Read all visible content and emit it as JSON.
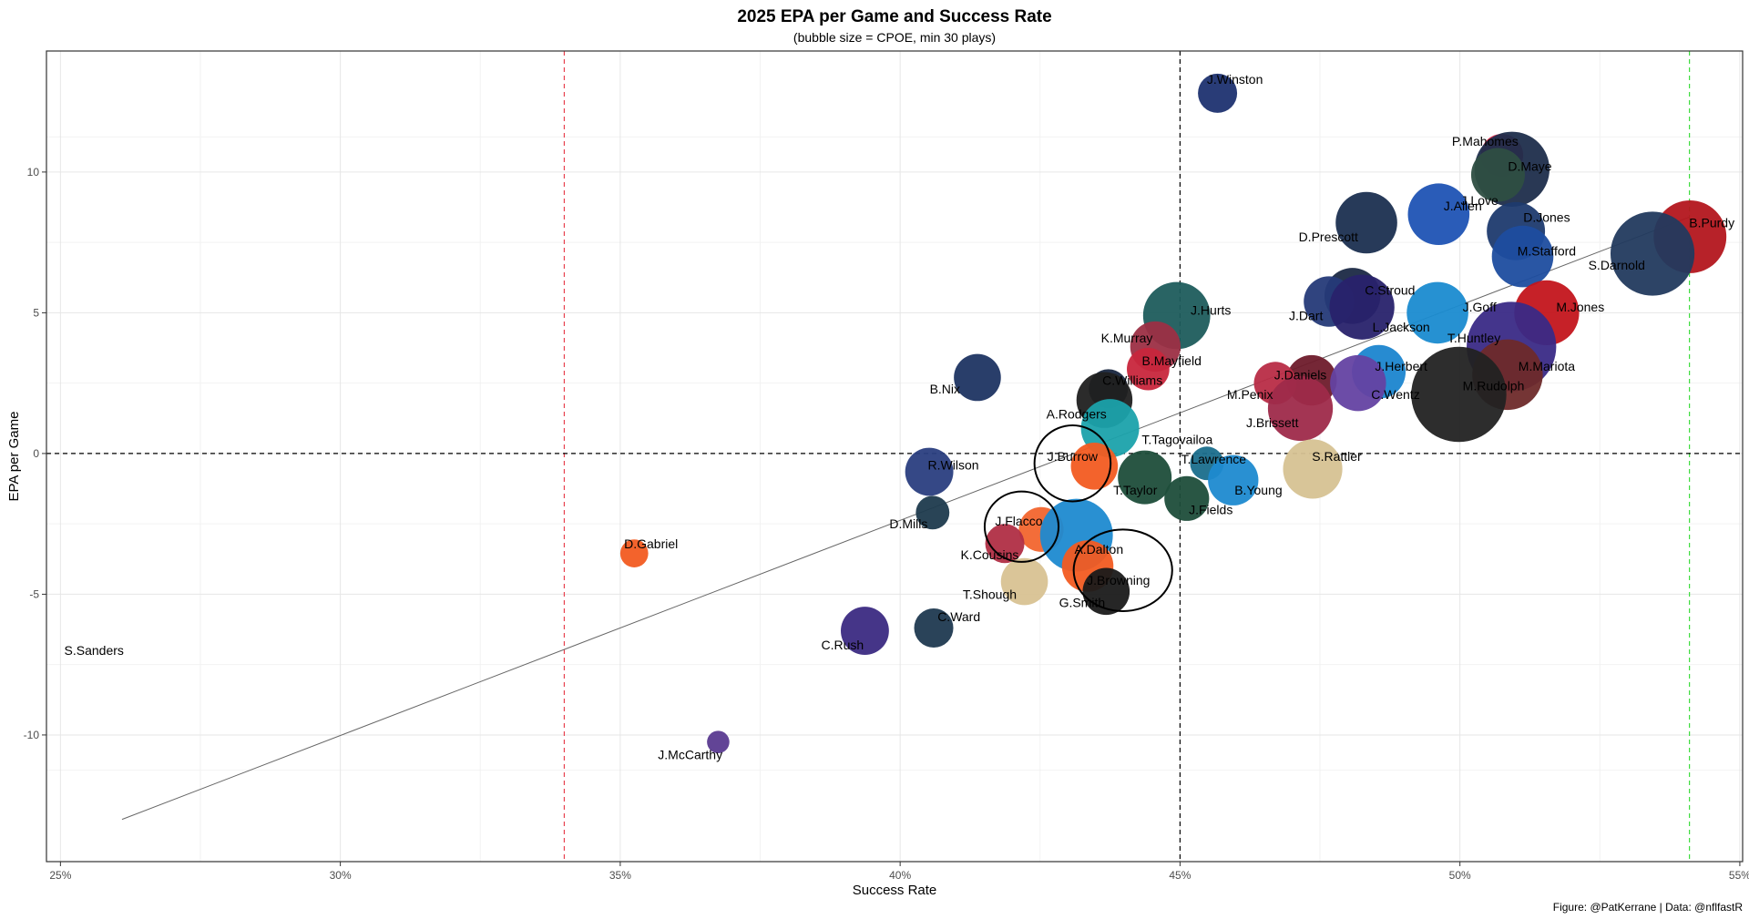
{
  "chart_data": {
    "type": "scatter",
    "title": "2025 EPA per Game and Success Rate",
    "subtitle": "(bubble size = CPOE, min 30 plays)",
    "xlabel": "Success Rate",
    "ylabel": "EPA per Game",
    "caption": "Figure: @PatKerrane | Data: @nflfastR",
    "xlim": [
      0.2475,
      0.5505
    ],
    "ylim": [
      -14.5,
      14.3
    ],
    "xticks": [
      0.25,
      0.3,
      0.35,
      0.4,
      0.45,
      0.5,
      0.55
    ],
    "xtick_labels": [
      "25%",
      "30%",
      "35%",
      "40%",
      "45%",
      "50%",
      "55%"
    ],
    "yticks": [
      -10,
      -5,
      0,
      5,
      10
    ],
    "ytick_labels": [
      "-10",
      "-5",
      "0",
      "5",
      "10"
    ],
    "reference_lines": [
      {
        "axis": "x",
        "value": 0.34,
        "color": "#e8414e",
        "style": "dashed"
      },
      {
        "axis": "x",
        "value": 0.45,
        "color": "#000000",
        "style": "dashed"
      },
      {
        "axis": "x",
        "value": 0.541,
        "color": "#3ddc3d",
        "style": "dashed"
      },
      {
        "axis": "y",
        "value": 0,
        "color": "#000000",
        "style": "dashed"
      }
    ],
    "trend_line": {
      "x1": 0.261,
      "y1": -13.0,
      "x2": 0.541,
      "y2": 8.4,
      "color": "#666666"
    },
    "highlights": [
      {
        "label": "J.Burrow",
        "x": 0.4308,
        "y": -0.35,
        "rx": 0.0068,
        "ry": 1.35
      },
      {
        "label": "J.Flacco",
        "x": 0.4217,
        "y": -2.6,
        "rx": 0.0066,
        "ry": 1.25
      },
      {
        "label": "J.Browning",
        "x": 0.4398,
        "y": -4.15,
        "rx": 0.0088,
        "ry": 1.45
      }
    ],
    "points": [
      {
        "name": "J.Winston",
        "x": 0.4567,
        "y": 12.8,
        "size": 0.0035,
        "color": "#1e3270",
        "lx": 0.4598,
        "ly": 13.3
      },
      {
        "name": "P.Mahomes",
        "x": 0.5075,
        "y": 10.6,
        "size": 0.0038,
        "color": "#d8284a",
        "lx": 0.5045,
        "ly": 11.1
      },
      {
        "name": "D.Maye",
        "x": 0.5093,
        "y": 10.1,
        "size": 0.0067,
        "color": "#1d2d4b",
        "lx": 0.5125,
        "ly": 10.2
      },
      {
        "name": "J.Love",
        "x": 0.5068,
        "y": 9.9,
        "size": 0.0048,
        "color": "#2e4e42",
        "lx": 0.5035,
        "ly": 9.0
      },
      {
        "name": "J.Allen",
        "x": 0.4962,
        "y": 8.5,
        "size": 0.0055,
        "color": "#1f53b4",
        "lx": 0.5005,
        "ly": 8.8
      },
      {
        "name": "D.Prescott",
        "x": 0.4833,
        "y": 8.2,
        "size": 0.0055,
        "color": "#1b2f50",
        "lx": 0.4765,
        "ly": 7.7
      },
      {
        "name": "D.Jones",
        "x": 0.51,
        "y": 7.9,
        "size": 0.0052,
        "color": "#1e3a6e",
        "lx": 0.5155,
        "ly": 8.4
      },
      {
        "name": "B.Purdy",
        "x": 0.5411,
        "y": 7.7,
        "size": 0.0065,
        "color": "#b3161e",
        "lx": 0.545,
        "ly": 8.2
      },
      {
        "name": "S.Darnold",
        "x": 0.5344,
        "y": 7.1,
        "size": 0.0075,
        "color": "#223a5e",
        "lx": 0.528,
        "ly": 6.7
      },
      {
        "name": "M.Stafford",
        "x": 0.5112,
        "y": 7.0,
        "size": 0.0055,
        "color": "#1e4d9f",
        "lx": 0.5155,
        "ly": 7.2
      },
      {
        "name": "C.Stroud",
        "x": 0.4808,
        "y": 5.6,
        "size": 0.005,
        "color": "#1b2945",
        "lx": 0.4875,
        "ly": 5.8
      },
      {
        "name": "J.Dart",
        "x": 0.4766,
        "y": 5.4,
        "size": 0.0045,
        "color": "#253a78",
        "lx": 0.4725,
        "ly": 4.9
      },
      {
        "name": "L.Jackson",
        "x": 0.4825,
        "y": 5.2,
        "size": 0.0058,
        "color": "#28226b",
        "lx": 0.4895,
        "ly": 4.5
      },
      {
        "name": "J.Goff",
        "x": 0.496,
        "y": 5.0,
        "size": 0.0055,
        "color": "#1a8bd0",
        "lx": 0.5035,
        "ly": 5.2
      },
      {
        "name": "M.Jones",
        "x": 0.5155,
        "y": 5.0,
        "size": 0.0058,
        "color": "#c3151c",
        "lx": 0.5215,
        "ly": 5.2
      },
      {
        "name": "J.Hurts",
        "x": 0.4494,
        "y": 4.9,
        "size": 0.006,
        "color": "#1d5c5c",
        "lx": 0.4555,
        "ly": 5.1
      },
      {
        "name": "K.Murray",
        "x": 0.4456,
        "y": 3.8,
        "size": 0.0045,
        "color": "#9c2f45",
        "lx": 0.4405,
        "ly": 4.1
      },
      {
        "name": "T.Huntley",
        "x": 0.5092,
        "y": 3.8,
        "size": 0.008,
        "color": "#3a2a86",
        "lx": 0.5025,
        "ly": 4.1
      },
      {
        "name": "B.Mayfield",
        "x": 0.4443,
        "y": 3.0,
        "size": 0.0038,
        "color": "#c8263c",
        "lx": 0.4485,
        "ly": 3.3
      },
      {
        "name": "J.Herbert",
        "x": 0.4855,
        "y": 2.9,
        "size": 0.0048,
        "color": "#1b85cf",
        "lx": 0.4895,
        "ly": 3.1
      },
      {
        "name": "M.Mariota",
        "x": 0.5085,
        "y": 2.8,
        "size": 0.0063,
        "color": "#6e2a2a",
        "lx": 0.5155,
        "ly": 3.1
      },
      {
        "name": "B.Nix",
        "x": 0.4138,
        "y": 2.7,
        "size": 0.0042,
        "color": "#1e3462",
        "lx": 0.408,
        "ly": 2.3
      },
      {
        "name": "J.Daniels",
        "x": 0.4735,
        "y": 2.6,
        "size": 0.0045,
        "color": "#6e1b2b",
        "lx": 0.4715,
        "ly": 2.8
      },
      {
        "name": "M.Penix",
        "x": 0.467,
        "y": 2.5,
        "size": 0.0038,
        "color": "#b82c46",
        "lx": 0.4625,
        "ly": 2.1
      },
      {
        "name": "C.Williams",
        "x": 0.4372,
        "y": 2.3,
        "size": 0.0035,
        "color": "#18263f",
        "lx": 0.4415,
        "ly": 2.6
      },
      {
        "name": "C.Wentz",
        "x": 0.4818,
        "y": 2.5,
        "size": 0.005,
        "color": "#6442a2",
        "lx": 0.4885,
        "ly": 2.1
      },
      {
        "name": "M.Rudolph",
        "x": 0.4998,
        "y": 2.1,
        "size": 0.0085,
        "color": "#222222",
        "lx": 0.506,
        "ly": 2.4
      },
      {
        "name": "A.Rodgers",
        "x": 0.4365,
        "y": 1.9,
        "size": 0.005,
        "color": "#202020",
        "lx": 0.4315,
        "ly": 1.4
      },
      {
        "name": "J.Brissett",
        "x": 0.4715,
        "y": 1.6,
        "size": 0.0058,
        "color": "#9e2a4a",
        "lx": 0.4665,
        "ly": 1.1
      },
      {
        "name": "T.Tagovailoa",
        "x": 0.4375,
        "y": 0.9,
        "size": 0.0052,
        "color": "#1ba2ab",
        "lx": 0.4495,
        "ly": 0.5
      },
      {
        "name": "J.Burrow",
        "x": 0.4347,
        "y": -0.45,
        "size": 0.0042,
        "color": "#f25b21",
        "lx": 0.4308,
        "ly": -0.1
      },
      {
        "name": "T.Lawrence",
        "x": 0.4548,
        "y": -0.35,
        "size": 0.003,
        "color": "#1a6e8c",
        "lx": 0.456,
        "ly": -0.2
      },
      {
        "name": "S.Rattler",
        "x": 0.4737,
        "y": -0.55,
        "size": 0.0053,
        "color": "#d6c292",
        "lx": 0.478,
        "ly": -0.1
      },
      {
        "name": "R.Wilson",
        "x": 0.4052,
        "y": -0.65,
        "size": 0.0043,
        "color": "#2a3e80",
        "lx": 0.4095,
        "ly": -0.4
      },
      {
        "name": "T.Taylor",
        "x": 0.4437,
        "y": -0.85,
        "size": 0.0048,
        "color": "#1e4d3a",
        "lx": 0.442,
        "ly": -1.3
      },
      {
        "name": "B.Young",
        "x": 0.4595,
        "y": -0.95,
        "size": 0.0045,
        "color": "#1e8ad0",
        "lx": 0.464,
        "ly": -1.3
      },
      {
        "name": "J.Fields",
        "x": 0.4512,
        "y": -1.6,
        "size": 0.004,
        "color": "#1e4d3a",
        "lx": 0.4555,
        "ly": -2.0
      },
      {
        "name": "D.Mills",
        "x": 0.4058,
        "y": -2.1,
        "size": 0.003,
        "color": "#1e3a4d",
        "lx": 0.4015,
        "ly": -2.5
      },
      {
        "name": "J.Flacco",
        "x": 0.4252,
        "y": -2.7,
        "size": 0.004,
        "color": "#f2652e",
        "lx": 0.4212,
        "ly": -2.4
      },
      {
        "name": "K.Cousins",
        "x": 0.4187,
        "y": -3.2,
        "size": 0.0035,
        "color": "#b02e44",
        "lx": 0.416,
        "ly": -3.6
      },
      {
        "name": "A.Dalton",
        "x": 0.4315,
        "y": -2.9,
        "size": 0.0065,
        "color": "#1e8ad0",
        "lx": 0.4355,
        "ly": -3.4
      },
      {
        "name": "D.Gabriel",
        "x": 0.3525,
        "y": -3.55,
        "size": 0.0025,
        "color": "#f25b21",
        "lx": 0.3555,
        "ly": -3.2
      },
      {
        "name": "J.Browning",
        "x": 0.4335,
        "y": -4.0,
        "size": 0.0046,
        "color": "#f25b21",
        "lx": 0.439,
        "ly": -4.5
      },
      {
        "name": "T.Shough",
        "x": 0.4222,
        "y": -4.55,
        "size": 0.0042,
        "color": "#d8c292",
        "lx": 0.416,
        "ly": -5.0
      },
      {
        "name": "G.Smith",
        "x": 0.4368,
        "y": -4.9,
        "size": 0.0042,
        "color": "#1a1a1a",
        "lx": 0.4325,
        "ly": -5.3
      },
      {
        "name": "C.Ward",
        "x": 0.406,
        "y": -6.2,
        "size": 0.0035,
        "color": "#1f3950",
        "lx": 0.4105,
        "ly": -5.8
      },
      {
        "name": "C.Rush",
        "x": 0.3937,
        "y": -6.3,
        "size": 0.0043,
        "color": "#3b2a82",
        "lx": 0.3897,
        "ly": -6.8
      },
      {
        "name": "S.Sanders",
        "x": 0.256,
        "y": -7.0,
        "size": 0.0001,
        "color": "#ff6600",
        "lx": 0.256,
        "ly": -7.0
      },
      {
        "name": "J.McCarthy",
        "x": 0.3675,
        "y": -10.25,
        "size": 0.002,
        "color": "#5a3a90",
        "lx": 0.3625,
        "ly": -10.7
      }
    ]
  }
}
